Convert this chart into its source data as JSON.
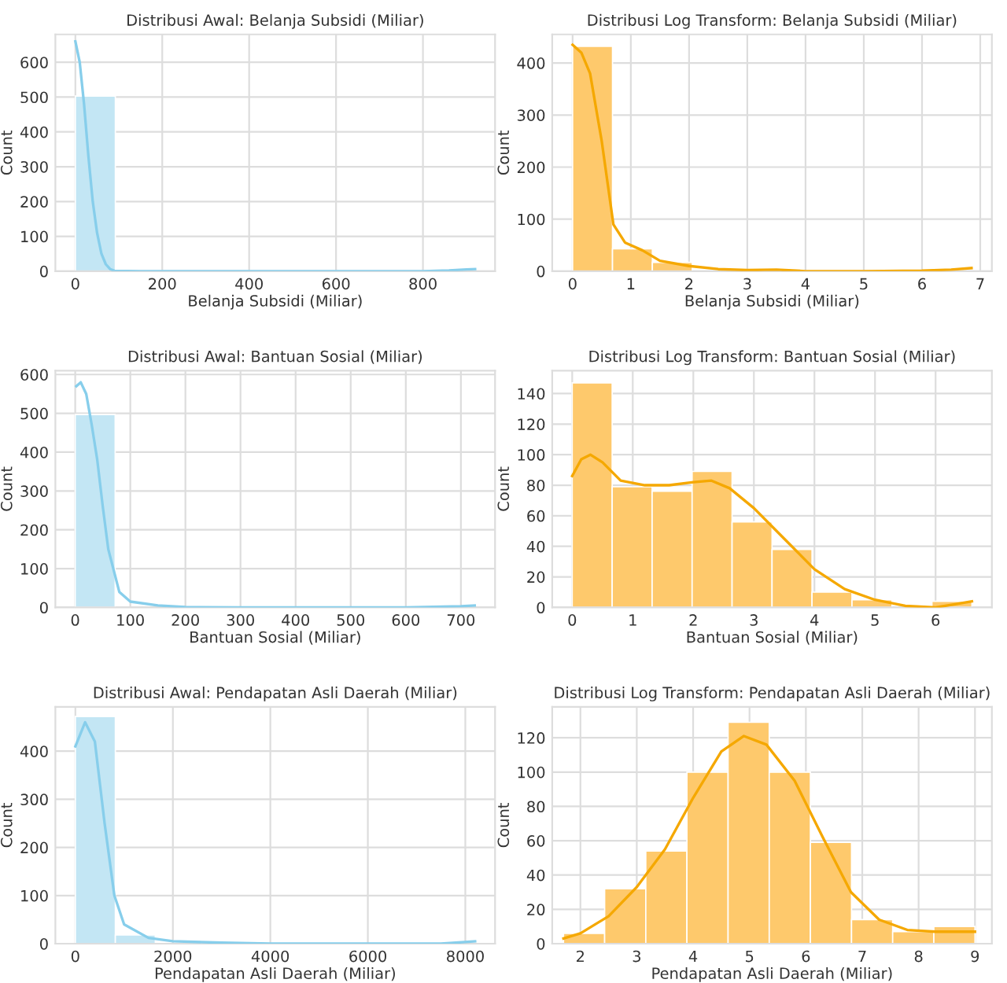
{
  "chart_data": [
    {
      "type": "histogram",
      "title": "Distribusi Awal: Belanja Subsidi (Miliar)",
      "xlabel": "Belanja Subsidi (Miliar)",
      "ylabel": "Count",
      "color": "#c3e6f4",
      "grid": true,
      "bins": [
        0,
        92,
        184,
        276,
        368,
        460,
        552,
        644,
        736,
        828,
        920
      ],
      "values": [
        503,
        0,
        0,
        0,
        0,
        0,
        0,
        0,
        0,
        3
      ],
      "xlim": [
        -46,
        966
      ],
      "ylim": [
        0,
        680
      ],
      "xticks": [
        0,
        200,
        400,
        600,
        800
      ],
      "yticks": [
        0,
        100,
        200,
        300,
        400,
        500,
        600
      ],
      "series": [
        {
          "type": "line",
          "color": "#87ceeb",
          "x": [
            0,
            10,
            20,
            30,
            40,
            50,
            60,
            70,
            80,
            90,
            150,
            800,
            860,
            900,
            920
          ],
          "values": [
            660,
            600,
            480,
            330,
            200,
            110,
            50,
            20,
            6,
            1,
            0,
            0,
            2,
            5,
            6
          ]
        }
      ]
    },
    {
      "type": "histogram",
      "title": "Distribusi Log Transform: Belanja Subsidi (Miliar)",
      "xlabel": "Belanja Subsidi (Miliar)",
      "ylabel": "Count",
      "color": "#fec96c",
      "grid": true,
      "bins": [
        0,
        0.685,
        1.37,
        2.055,
        2.74,
        3.425,
        4.11,
        4.795,
        5.48,
        6.165,
        6.85
      ],
      "values": [
        432,
        43,
        17,
        null,
        3,
        0,
        0,
        0,
        0,
        null
      ],
      "xlim": [
        -0.35,
        7.2
      ],
      "ylim": [
        0,
        455
      ],
      "xticks": [
        0,
        1,
        2,
        3,
        4,
        5,
        6,
        7
      ],
      "yticks": [
        0,
        100,
        200,
        300,
        400
      ],
      "series": [
        {
          "type": "line",
          "color": "#f5a800",
          "x": [
            0,
            0.15,
            0.3,
            0.5,
            0.7,
            0.9,
            1.2,
            1.5,
            2,
            2.5,
            3,
            3.5,
            4,
            5,
            6,
            6.5,
            6.85
          ],
          "values": [
            435,
            420,
            380,
            250,
            90,
            55,
            40,
            20,
            10,
            4,
            2,
            3,
            0,
            0,
            1,
            3,
            6
          ]
        }
      ]
    },
    {
      "type": "histogram",
      "title": "Distribusi Awal: Bantuan Sosial (Miliar)",
      "xlabel": "Bantuan Sosial (Miliar)",
      "ylabel": "Count",
      "color": "#c3e6f4",
      "grid": true,
      "bins": [
        0,
        72.5,
        145,
        217.5,
        290,
        362.5,
        435,
        507.5,
        580,
        652.5,
        725
      ],
      "values": [
        497,
        null,
        0,
        0,
        0,
        0,
        0,
        0,
        0,
        2
      ],
      "xlim": [
        -36,
        762
      ],
      "ylim": [
        0,
        610
      ],
      "xticks": [
        0,
        100,
        200,
        300,
        400,
        500,
        600,
        700
      ],
      "yticks": [
        0,
        100,
        200,
        300,
        400,
        500,
        600
      ],
      "series": [
        {
          "type": "line",
          "color": "#87ceeb",
          "x": [
            2,
            10,
            20,
            30,
            40,
            50,
            60,
            80,
            100,
            150,
            200,
            300,
            600,
            700,
            725
          ],
          "values": [
            570,
            580,
            550,
            470,
            380,
            260,
            150,
            40,
            15,
            5,
            1,
            0,
            0,
            3,
            5
          ]
        }
      ]
    },
    {
      "type": "histogram",
      "title": "Distribusi Log Transform: Bantuan Sosial (Miliar)",
      "xlabel": "Bantuan Sosial (Miliar)",
      "ylabel": "Count",
      "color": "#fec96c",
      "grid": true,
      "bins": [
        0,
        0.66,
        1.32,
        1.98,
        2.64,
        3.3,
        3.96,
        4.62,
        5.28,
        5.94,
        6.6
      ],
      "values": [
        147,
        79,
        76,
        89,
        56,
        38,
        10,
        5,
        0,
        4
      ],
      "xlim": [
        -0.33,
        6.93
      ],
      "ylim": [
        0,
        155
      ],
      "xticks": [
        0,
        1,
        2,
        3,
        4,
        5,
        6
      ],
      "yticks": [
        0,
        20,
        40,
        60,
        80,
        100,
        120,
        140
      ],
      "series": [
        {
          "type": "line",
          "color": "#f5a800",
          "x": [
            0,
            0.15,
            0.3,
            0.5,
            0.8,
            1.2,
            1.6,
            2.0,
            2.3,
            2.6,
            3.0,
            3.5,
            4.0,
            4.5,
            5,
            5.5,
            6,
            6.3,
            6.6
          ],
          "values": [
            86,
            97,
            100,
            95,
            83,
            80,
            80,
            82,
            83,
            78,
            65,
            45,
            25,
            12,
            5,
            1,
            0,
            2,
            4
          ]
        }
      ]
    },
    {
      "type": "histogram",
      "title": "Distribusi Awal: Pendapatan Asli Daerah (Miliar)",
      "xlabel": "Pendapatan Asli Daerah (Miliar)",
      "ylabel": "Count",
      "color": "#c3e6f4",
      "grid": true,
      "bins": [
        0,
        820,
        1640,
        2460,
        3280,
        4100,
        4920,
        5740,
        6560,
        7380,
        8200
      ],
      "values": [
        472,
        18,
        null,
        1,
        0,
        0,
        0,
        0,
        0,
        2
      ],
      "xlim": [
        -410,
        8610
      ],
      "ylim": [
        0,
        492
      ],
      "xticks": [
        0,
        2000,
        4000,
        6000,
        8000
      ],
      "yticks": [
        0,
        100,
        200,
        300,
        400
      ],
      "series": [
        {
          "type": "line",
          "color": "#87ceeb",
          "x": [
            0,
            200,
            400,
            600,
            800,
            1000,
            1500,
            2000,
            3000,
            4000,
            7500,
            8200
          ],
          "values": [
            410,
            460,
            420,
            250,
            100,
            40,
            12,
            5,
            2,
            0,
            0,
            5
          ]
        }
      ]
    },
    {
      "type": "histogram",
      "title": "Distribusi Log Transform: Pendapatan Asli Daerah (Miliar)",
      "xlabel": "Pendapatan Asli Daerah (Miliar)",
      "ylabel": "Count",
      "color": "#fec96c",
      "grid": true,
      "bins": [
        1.7,
        2.43,
        3.16,
        3.89,
        4.62,
        5.35,
        6.08,
        6.81,
        7.54,
        8.27,
        9.0
      ],
      "values": [
        6,
        32,
        54,
        100,
        129,
        100,
        59,
        14,
        7,
        10
      ],
      "xlim": [
        1.5,
        9.3
      ],
      "ylim": [
        0,
        138
      ],
      "xticks": [
        2,
        3,
        4,
        5,
        6,
        7,
        8,
        9
      ],
      "yticks": [
        0,
        20,
        40,
        60,
        80,
        100,
        120
      ],
      "series": [
        {
          "type": "line",
          "color": "#f5a800",
          "x": [
            1.7,
            2,
            2.5,
            3,
            3.5,
            4,
            4.5,
            4.9,
            5.3,
            5.8,
            6.3,
            6.8,
            7.3,
            7.8,
            8.3,
            9
          ],
          "values": [
            3,
            6,
            16,
            33,
            55,
            85,
            112,
            121,
            116,
            95,
            62,
            30,
            14,
            8,
            7,
            7
          ]
        }
      ]
    }
  ]
}
